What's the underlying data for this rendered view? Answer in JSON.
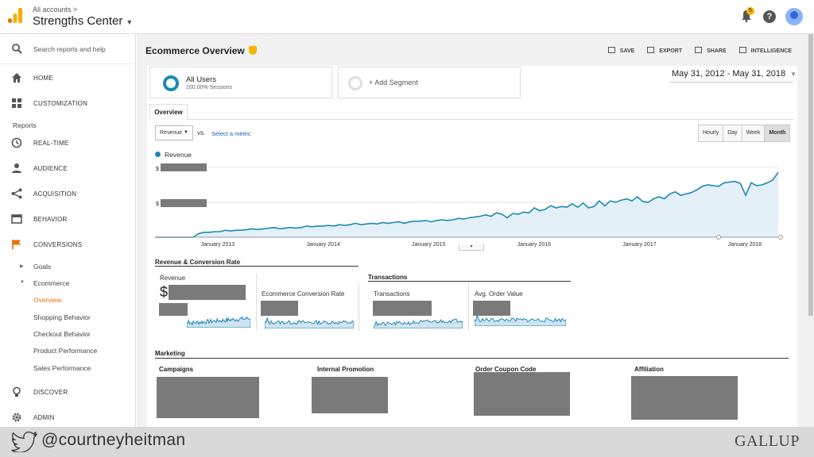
{
  "header": {
    "breadcrumb": "All accounts >",
    "account": "Strengths Center",
    "notification_count": "5"
  },
  "sidebar": {
    "search_placeholder": "Search reports and help",
    "items": [
      {
        "label": "HOME",
        "icon": "home-icon"
      },
      {
        "label": "CUSTOMIZATION",
        "icon": "grid-icon"
      },
      {
        "label": "REAL-TIME",
        "icon": "clock-icon"
      },
      {
        "label": "AUDIENCE",
        "icon": "person-icon"
      },
      {
        "label": "ACQUISITION",
        "icon": "acquisition-icon"
      },
      {
        "label": "BEHAVIOR",
        "icon": "behavior-icon"
      },
      {
        "label": "CONVERSIONS",
        "icon": "flag-icon"
      },
      {
        "label": "DISCOVER",
        "icon": "lightbulb-icon"
      },
      {
        "label": "ADMIN",
        "icon": "gear-icon"
      }
    ],
    "reports_label": "Reports",
    "sub_items": [
      "Goals",
      "Ecommerce",
      "Overview",
      "Shopping Behavior",
      "Checkout Behavior",
      "Product Performance",
      "Sales Performance"
    ]
  },
  "page": {
    "title": "Ecommerce Overview",
    "toolbar": [
      "SAVE",
      "EXPORT",
      "SHARE",
      "INTELLIGENCE"
    ],
    "segment_name": "All Users",
    "segment_sub": "100.00% Sessions",
    "add_segment": "+ Add Segment",
    "date_range": "May 31, 2012 - May 31, 2018",
    "tab": "Overview",
    "metric": "Revenue",
    "vs": "vs.",
    "select_metric": "Select a metric",
    "granularity": [
      "Hourly",
      "Day",
      "Week",
      "Month"
    ],
    "legend": "Revenue",
    "y_tick_prefix": "$",
    "section_rev": "Revenue & Conversion Rate",
    "section_tx": "Transactions",
    "kpi_revenue": "Revenue",
    "kpi_conv": "Ecommerce Conversion Rate",
    "kpi_tx": "Transactions",
    "kpi_aov": "Avg. Order Value",
    "currency": "$",
    "section_marketing": "Marketing",
    "marketing": [
      "Campaigns",
      "Internal Promotion",
      "Order Coupon Code",
      "Affiliation"
    ]
  },
  "chart_data": {
    "type": "area",
    "series": [
      {
        "name": "Revenue",
        "values": [
          0.0,
          0.0,
          0.0,
          0.0,
          0.0,
          0.0,
          0.0,
          0.0,
          0.05,
          0.07,
          0.07,
          0.08,
          0.08,
          0.1,
          0.09,
          0.1,
          0.1,
          0.11,
          0.12,
          0.11,
          0.12,
          0.13,
          0.14,
          0.12,
          0.13,
          0.14,
          0.13,
          0.14,
          0.16,
          0.15,
          0.16,
          0.16,
          0.17,
          0.16,
          0.18,
          0.17,
          0.18,
          0.2,
          0.18,
          0.19,
          0.2,
          0.19,
          0.21,
          0.2,
          0.21,
          0.22,
          0.2,
          0.22,
          0.23,
          0.23,
          0.24,
          0.22,
          0.24,
          0.25,
          0.24,
          0.25,
          0.27,
          0.26,
          0.28,
          0.29,
          0.3,
          0.32,
          0.3,
          0.35,
          0.33,
          0.28,
          0.34,
          0.33,
          0.36,
          0.35,
          0.42,
          0.38,
          0.4,
          0.45,
          0.42,
          0.44,
          0.43,
          0.48,
          0.43,
          0.49,
          0.42,
          0.44,
          0.52,
          0.45,
          0.52,
          0.5,
          0.53,
          0.55,
          0.52,
          0.58,
          0.51,
          0.5,
          0.55,
          0.58,
          0.55,
          0.62,
          0.65,
          0.6,
          0.62,
          0.64,
          0.68,
          0.73,
          0.75,
          0.74,
          0.73,
          0.78,
          0.79,
          0.8,
          0.77,
          0.6,
          0.78,
          0.74,
          0.75,
          0.78,
          0.82,
          0.93
        ]
      }
    ],
    "x_ticks": [
      "January 2013",
      "January 2014",
      "January 2015",
      "January 2016",
      "January 2017",
      "January 2018"
    ],
    "grid": true,
    "color": "#1e88b5"
  },
  "colors": {
    "accent": "#1e88b5",
    "active": "#e37400",
    "redacted": "#7a7a7a"
  },
  "footer": {
    "handle": "@courtneyheitman",
    "brand": "GALLUP"
  }
}
